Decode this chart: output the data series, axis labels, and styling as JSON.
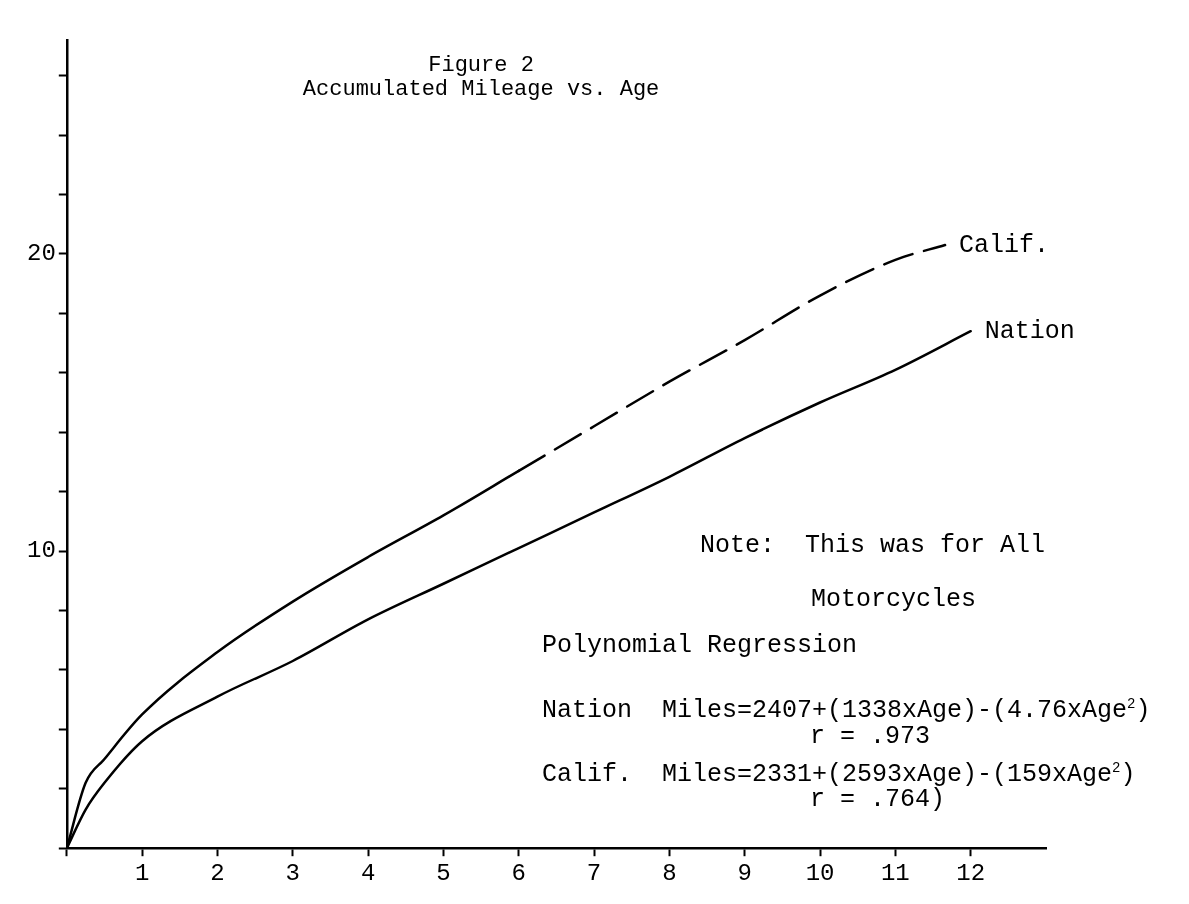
{
  "chart_data": {
    "type": "line",
    "title": "Figure 2",
    "subtitle": "Accumulated Mileage vs. Age",
    "xlim": [
      0,
      13
    ],
    "xticks": [
      {
        "value": 0,
        "label": null
      },
      1,
      2,
      3,
      4,
      5,
      6,
      7,
      8,
      9,
      10,
      11,
      12
    ],
    "ylim": [
      0,
      27.2
    ],
    "yticks": [
      {
        "value": 0,
        "label": null
      },
      {
        "value": 2,
        "label": null
      },
      {
        "value": 4,
        "label": null
      },
      {
        "value": 6,
        "label": null
      },
      {
        "value": 8,
        "label": null
      },
      10,
      {
        "value": 12,
        "label": null
      },
      {
        "value": 14,
        "label": null
      },
      {
        "value": 16,
        "label": null
      },
      {
        "value": 18,
        "label": null
      },
      20,
      {
        "value": 22,
        "label": null
      },
      {
        "value": 24,
        "label": null
      },
      {
        "value": 26,
        "label": null
      }
    ],
    "grid": false,
    "legend": false,
    "marker": "none",
    "series": [
      {
        "color": "#000000",
        "line_style": "solid",
        "x": [
          0,
          0.25,
          0.5,
          1,
          2,
          3,
          4,
          5,
          6
        ],
        "values": [
          0,
          2.2,
          3.0,
          4.5,
          6.6,
          8.3,
          9.8,
          11.2,
          12.7
        ]
      },
      {
        "name": "Calif.",
        "color": "#000000",
        "line_style": "dashed",
        "x": [
          6,
          7,
          8,
          9,
          10,
          11,
          11.66
        ],
        "values": [
          12.7,
          14.2,
          15.7,
          17.1,
          18.6,
          19.8,
          20.3
        ]
      },
      {
        "name": "Nation",
        "color": "#000000",
        "line_style": "solid",
        "x": [
          0,
          0.25,
          0.5,
          1,
          2,
          3,
          4,
          5,
          6,
          7,
          8,
          9,
          10,
          11,
          12
        ],
        "values": [
          0,
          1.3,
          2.2,
          3.6,
          5.1,
          6.3,
          7.7,
          8.9,
          10.1,
          11.3,
          12.5,
          13.8,
          15.0,
          16.1,
          17.4
        ]
      }
    ],
    "annotations": [
      "Note:  This was for All",
      "Motorcycles",
      "Polynomial Regression",
      "Nation  Miles=2407+(1338xAge)-(4.76xAge$^{2}$)",
      "r = .973",
      "Calif.  Miles=2331+(2593xAge)-(159xAge$^{2}$)",
      "r = .764)"
    ]
  }
}
